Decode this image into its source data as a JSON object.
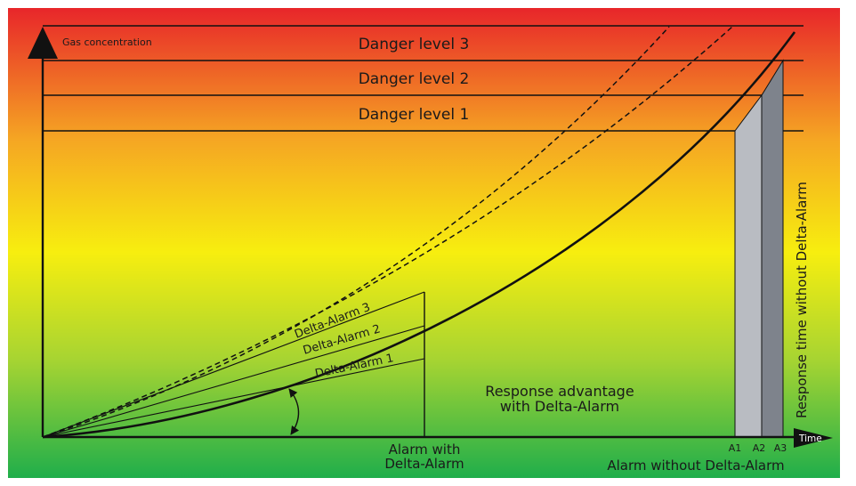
{
  "axes": {
    "y_label": "Gas concentration",
    "x_label": "Time"
  },
  "danger_levels": [
    {
      "label": "Danger level 3"
    },
    {
      "label": "Danger level 2"
    },
    {
      "label": "Danger level 1"
    }
  ],
  "delta_alarms": [
    {
      "label": "Delta-Alarm 3"
    },
    {
      "label": "Delta-Alarm 2"
    },
    {
      "label": "Delta-Alarm 1"
    }
  ],
  "markers": [
    {
      "label": "A1"
    },
    {
      "label": "A2"
    },
    {
      "label": "A3"
    }
  ],
  "annotations": {
    "response_advantage_line1": "Response advantage",
    "response_advantage_line2": "with Delta-Alarm",
    "alarm_with_line1": "Alarm with",
    "alarm_with_line2": "Delta-Alarm",
    "alarm_without": "Alarm without Delta-Alarm",
    "response_time_without": "Response time without Delta-Alarm"
  },
  "colors": {
    "gradient_top": "#e8262a",
    "gradient_mid_orange": "#f5a623",
    "gradient_mid_yellow": "#f7ee0f",
    "gradient_bottom": "#1fae4b",
    "band_light": "#b9bcc2",
    "band_dark": "#7e838c",
    "line": "#111111"
  }
}
